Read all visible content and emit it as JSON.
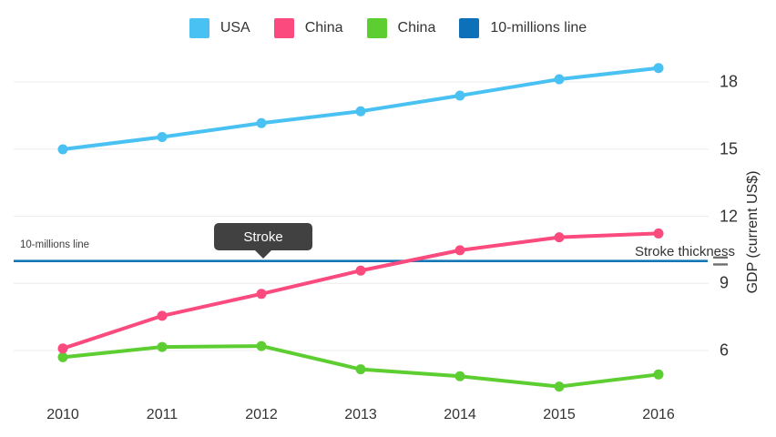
{
  "legend": {
    "items": [
      {
        "label": "USA",
        "color": "#49C1F2"
      },
      {
        "label": "China",
        "color": "#FB4A7E"
      },
      {
        "label": "China",
        "color": "#5DCE31"
      },
      {
        "label": "10-millions line",
        "color": "#0D71B9"
      }
    ]
  },
  "tooltip": {
    "text": "Stroke"
  },
  "annotations": {
    "ref_line_label": "10-millions line",
    "stroke_thickness_label": "Stroke thickness"
  },
  "chart_data": {
    "type": "line",
    "title": "",
    "xlabel": "",
    "ylabel": "GDP (current US$)",
    "categories": [
      "2010",
      "2011",
      "2012",
      "2013",
      "2014",
      "2015",
      "2016"
    ],
    "series": [
      {
        "name": "USA",
        "color": "#49C1F2",
        "values": [
          14.99,
          15.54,
          16.16,
          16.69,
          17.39,
          18.12,
          18.62
        ]
      },
      {
        "name": "China",
        "color": "#FB4A7E",
        "values": [
          6.09,
          7.55,
          8.53,
          9.57,
          10.48,
          11.06,
          11.23
        ]
      },
      {
        "name": "China",
        "color": "#5DCE31",
        "values": [
          5.7,
          6.16,
          6.2,
          5.16,
          4.85,
          4.39,
          4.93
        ]
      }
    ],
    "reference_line": {
      "name": "10-millions line",
      "value": 10,
      "color": "#1577B5"
    },
    "yticks": [
      6,
      9,
      12,
      15,
      18
    ],
    "ylim": [
      3.4,
      19.2
    ],
    "grid": "horizontal-only",
    "legend_position": "top"
  }
}
